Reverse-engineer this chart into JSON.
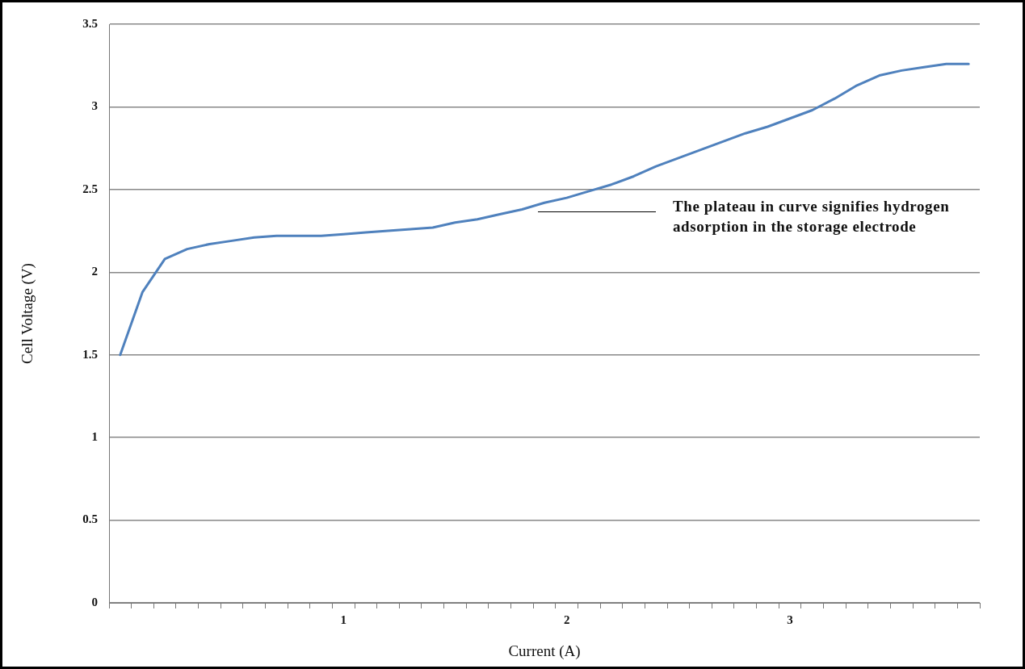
{
  "chart_data": {
    "type": "line",
    "xlabel": "Current (A)",
    "ylabel": "Cell Voltage (V)",
    "categories": [
      null,
      null,
      null,
      null,
      null,
      null,
      null,
      null,
      null,
      null,
      "1",
      null,
      null,
      null,
      null,
      null,
      null,
      null,
      null,
      null,
      "2",
      null,
      null,
      null,
      null,
      null,
      null,
      null,
      null,
      null,
      "3",
      null,
      null,
      null,
      null,
      null,
      null,
      null,
      null
    ],
    "series": [
      {
        "color": "#4f81bd",
        "values": [
          1.5,
          1.88,
          2.08,
          2.14,
          2.17,
          2.19,
          2.21,
          2.22,
          2.22,
          2.22,
          2.23,
          2.24,
          2.25,
          2.26,
          2.27,
          2.3,
          2.32,
          2.35,
          2.38,
          2.42,
          2.45,
          2.49,
          2.53,
          2.58,
          2.64,
          2.69,
          2.74,
          2.79,
          2.84,
          2.88,
          2.93,
          2.98,
          3.05,
          3.13,
          3.19,
          3.22,
          3.24,
          3.26,
          3.26
        ]
      }
    ],
    "ylim": [
      0,
      3.5
    ],
    "yticks": [
      0,
      0.5,
      1,
      1.5,
      2,
      2.5,
      3,
      3.5
    ],
    "grid": "y",
    "legend": false,
    "marker": "none",
    "line_style": "solid",
    "annotations": [
      "The plateau in curve signifies hydrogen adsorption in the storage electrode"
    ]
  }
}
